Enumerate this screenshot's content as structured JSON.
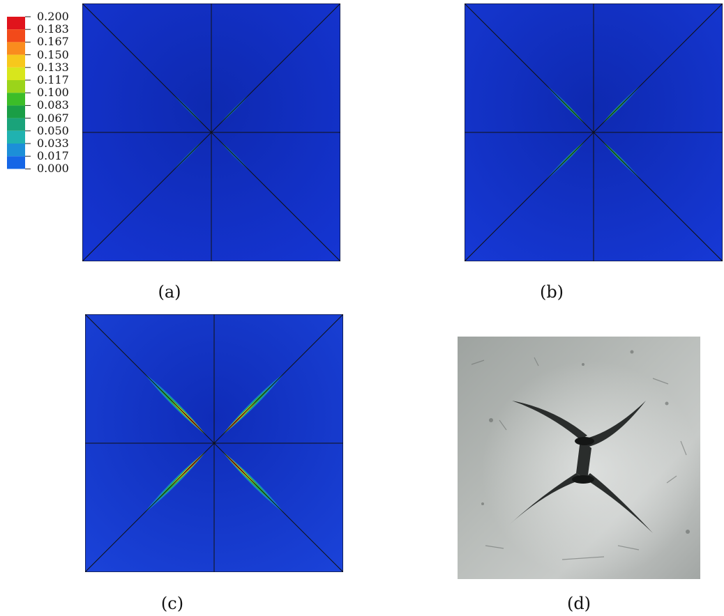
{
  "legend": {
    "labels": [
      "0.200",
      "0.183",
      "0.167",
      "0.150",
      "0.133",
      "0.117",
      "0.100",
      "0.083",
      "0.067",
      "0.050",
      "0.033",
      "0.017",
      "0.000"
    ],
    "colors": [
      "#e0141c",
      "#f24a1a",
      "#fa8c1e",
      "#f7c81c",
      "#d8e61c",
      "#9bd41a",
      "#3cbd28",
      "#1a9e46",
      "#1aa37a",
      "#20b2b0",
      "#1c8fd8",
      "#1566e6",
      "#1226d2"
    ]
  },
  "panels": [
    {
      "caption": "(a)",
      "intensity": 0.1
    },
    {
      "caption": "(b)",
      "intensity": 0.35
    },
    {
      "caption": "(c)",
      "intensity": 1.0
    },
    {
      "caption": "(d)"
    }
  ],
  "colors": {
    "field_blue": "#1535d2",
    "field_dark": "#0a1f9c",
    "photo_gray": "#a9adab"
  }
}
